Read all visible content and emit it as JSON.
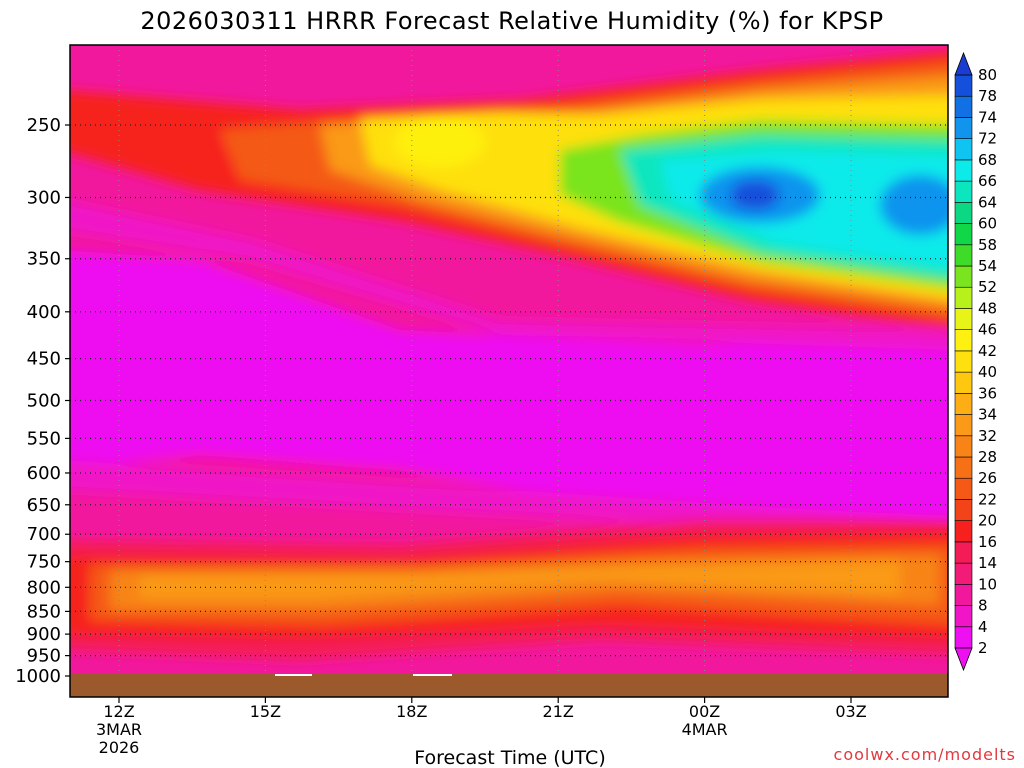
{
  "chart_data": {
    "type": "heatmap",
    "title": "2026030311 HRRR Forecast Relative Humidity (%) for KPSP",
    "xlabel": "Forecast Time (UTC)",
    "ylabel": "",
    "credit": "coolwx.com/modelts",
    "y_axis": {
      "scale": "log-pressure",
      "ticks": [
        250,
        300,
        350,
        400,
        450,
        500,
        550,
        600,
        650,
        700,
        750,
        800,
        850,
        900,
        950,
        1000
      ],
      "tick_labels": [
        "250",
        "300",
        "350",
        "400",
        "450",
        "500",
        "550",
        "600",
        "650",
        "700",
        "750",
        "800",
        "850",
        "900",
        "950",
        "1000"
      ],
      "range_hpa": [
        210,
        1040
      ]
    },
    "x_axis": {
      "range_hours_from_12z": [
        -1,
        17
      ],
      "ticks": [
        {
          "hour": 0,
          "lines": [
            "12Z",
            "3MAR",
            "2026"
          ]
        },
        {
          "hour": 3,
          "lines": [
            "15Z"
          ]
        },
        {
          "hour": 6,
          "lines": [
            "18Z"
          ]
        },
        {
          "hour": 9,
          "lines": [
            "21Z"
          ]
        },
        {
          "hour": 12,
          "lines": [
            "00Z",
            "4MAR"
          ]
        },
        {
          "hour": 15,
          "lines": [
            "03Z"
          ]
        }
      ]
    },
    "grid": true,
    "colorbar": {
      "levels": [
        2,
        4,
        8,
        10,
        14,
        16,
        20,
        22,
        26,
        28,
        32,
        34,
        36,
        40,
        42,
        46,
        48,
        52,
        54,
        58,
        60,
        64,
        66,
        68,
        72,
        74,
        78,
        80
      ],
      "labels": [
        "2",
        "4",
        "8",
        "10",
        "14",
        "16",
        "20",
        "22",
        "26",
        "28",
        "32",
        "34",
        "36",
        "40",
        "42",
        "46",
        "48",
        "52",
        "54",
        "58",
        "60",
        "64",
        "66",
        "68",
        "72",
        "74",
        "78",
        "80"
      ],
      "colors": [
        "#ee10f0",
        "#f016c8",
        "#f2189e",
        "#f21c78",
        "#f41c56",
        "#f6201e",
        "#f24418",
        "#f45a16",
        "#f67016",
        "#f88418",
        "#fa9a18",
        "#fcae14",
        "#fec810",
        "#fee010",
        "#fef010",
        "#e8f418",
        "#b8f01c",
        "#7ae41e",
        "#3edc28",
        "#10d648",
        "#0cd884",
        "#0ce6be",
        "#0ceaea",
        "#10c4f2",
        "#1094ee",
        "#1070e4",
        "#1450dc",
        "#1a3cd0"
      ]
    },
    "ground_color": "#9c5a2c",
    "grid_x_hours": [
      0,
      3,
      6,
      9,
      12,
      15
    ],
    "grid_y_hpa": [
      250,
      300,
      350,
      400,
      450,
      500,
      550,
      600,
      650,
      700,
      750,
      800,
      850,
      900,
      950
    ],
    "bands": [
      {
        "name": "upper-dry",
        "color": "#f2189e"
      },
      {
        "name": "mid-dry",
        "color": "#ee10f0"
      },
      {
        "name": "low-moist",
        "color": "#f67016"
      },
      {
        "name": "upper-moist",
        "color": "#10c4f2"
      }
    ]
  }
}
